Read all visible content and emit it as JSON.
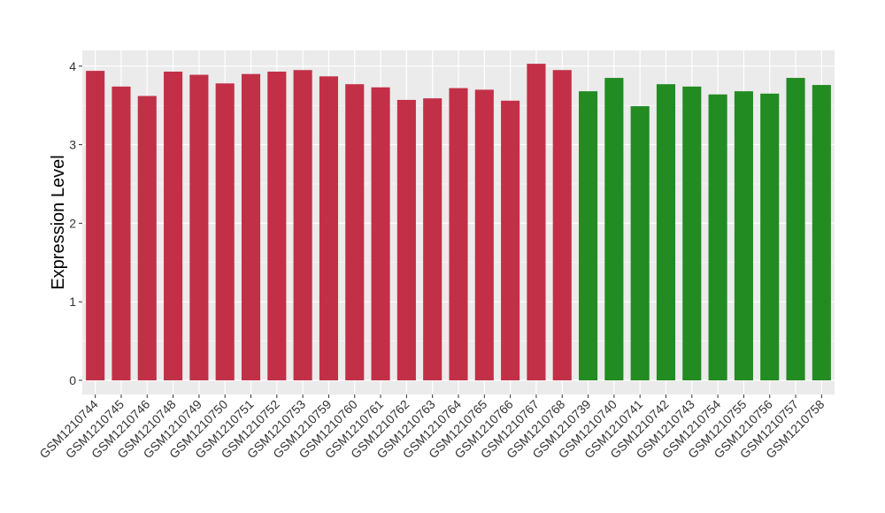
{
  "chart_data": {
    "type": "bar",
    "title": "",
    "xlabel": "",
    "ylabel": "Expression Level",
    "ylim": [
      -0.18,
      4.2
    ],
    "yticks": [
      0,
      1,
      2,
      3,
      4
    ],
    "grid": true,
    "legend": "none",
    "panel_background": "#EBEBEB",
    "categories": [
      "GSM1210744",
      "GSM1210745",
      "GSM1210746",
      "GSM1210748",
      "GSM1210749",
      "GSM1210750",
      "GSM1210751",
      "GSM1210752",
      "GSM1210753",
      "GSM1210759",
      "GSM1210760",
      "GSM1210761",
      "GSM1210762",
      "GSM1210763",
      "GSM1210764",
      "GSM1210765",
      "GSM1210766",
      "GSM1210767",
      "GSM1210768",
      "GSM1210739",
      "GSM1210740",
      "GSM1210741",
      "GSM1210742",
      "GSM1210743",
      "GSM1210754",
      "GSM1210755",
      "GSM1210756",
      "GSM1210757",
      "GSM1210758"
    ],
    "values": [
      3.94,
      3.74,
      3.62,
      3.93,
      3.89,
      3.78,
      3.9,
      3.93,
      3.95,
      3.87,
      3.77,
      3.73,
      3.57,
      3.59,
      3.72,
      3.7,
      3.56,
      4.03,
      3.95,
      3.68,
      3.85,
      3.49,
      3.77,
      3.74,
      3.64,
      3.68,
      3.65,
      3.85,
      3.76
    ],
    "group_colors": [
      "#C23047",
      "#C23047",
      "#C23047",
      "#C23047",
      "#C23047",
      "#C23047",
      "#C23047",
      "#C23047",
      "#C23047",
      "#C23047",
      "#C23047",
      "#C23047",
      "#C23047",
      "#C23047",
      "#C23047",
      "#C23047",
      "#C23047",
      "#C23047",
      "#C23047",
      "#228B22",
      "#228B22",
      "#228B22",
      "#228B22",
      "#228B22",
      "#228B22",
      "#228B22",
      "#228B22",
      "#228B22",
      "#228B22"
    ]
  }
}
